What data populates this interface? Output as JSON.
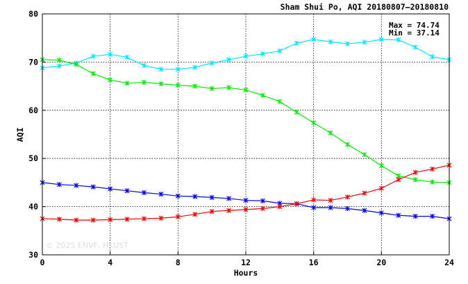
{
  "chart_data": {
    "type": "line",
    "title": "Sham Shui Po, AQI 20180807–20180810",
    "xlabel": "Hours",
    "ylabel": "AQI",
    "xlim": [
      0,
      24
    ],
    "ylim": [
      30,
      80
    ],
    "x_ticks": [
      0,
      4,
      8,
      12,
      16,
      20,
      24
    ],
    "y_ticks": [
      30,
      40,
      50,
      60,
      70,
      80
    ],
    "grid": true,
    "stats": {
      "max": "Max = 74.74",
      "min": "Min = 37.14"
    },
    "watermark": "© 2025  ENVF, HKUST",
    "x": [
      0,
      1,
      2,
      3,
      4,
      5,
      6,
      7,
      8,
      9,
      10,
      11,
      12,
      13,
      14,
      15,
      16,
      17,
      18,
      19,
      20,
      21,
      22,
      23,
      24
    ],
    "series": [
      {
        "color": "#00e5ff",
        "values": [
          68.8,
          69.2,
          69.8,
          71.2,
          71.6,
          71.0,
          69.3,
          68.5,
          68.5,
          68.9,
          69.8,
          70.5,
          71.2,
          71.7,
          72.3,
          73.9,
          74.7,
          74.2,
          73.8,
          74.1,
          74.7,
          74.6,
          73.1,
          71.1,
          70.5
        ]
      },
      {
        "color": "#00e800",
        "values": [
          70.5,
          70.4,
          69.5,
          67.6,
          66.3,
          65.6,
          65.8,
          65.5,
          65.2,
          65.0,
          64.5,
          64.7,
          64.2,
          63.1,
          61.8,
          59.6,
          57.4,
          55.3,
          52.9,
          50.8,
          48.5,
          46.4,
          45.6,
          45.1,
          45.0
        ]
      },
      {
        "color": "#0000ee",
        "values": [
          45.0,
          44.6,
          44.4,
          44.1,
          43.7,
          43.3,
          42.9,
          42.6,
          42.2,
          42.1,
          41.9,
          41.7,
          41.3,
          41.2,
          40.7,
          40.6,
          39.8,
          39.8,
          39.6,
          39.2,
          38.7,
          38.2,
          38.0,
          38.0,
          37.5
        ]
      },
      {
        "color": "#ee0000",
        "values": [
          37.5,
          37.4,
          37.2,
          37.2,
          37.3,
          37.4,
          37.5,
          37.6,
          37.9,
          38.4,
          39.0,
          39.2,
          39.4,
          39.6,
          40.0,
          40.6,
          41.4,
          41.3,
          42.0,
          42.8,
          43.8,
          45.6,
          47.1,
          47.8,
          48.6
        ]
      }
    ]
  }
}
